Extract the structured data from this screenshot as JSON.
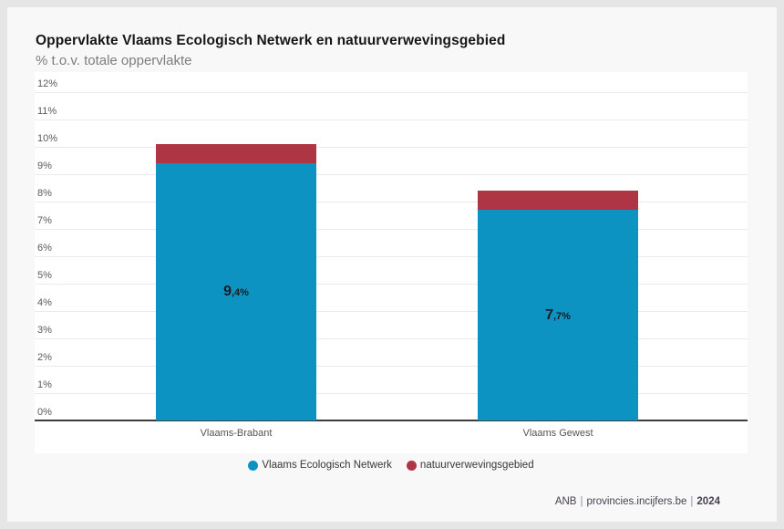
{
  "chart_data": {
    "type": "bar",
    "stacked": true,
    "title": "Oppervlakte Vlaams Ecologisch Netwerk en natuurverwevingsgebied",
    "subtitle": "% t.o.v. totale oppervlakte",
    "categories": [
      "Vlaams-Brabant",
      "Vlaams Gewest"
    ],
    "series": [
      {
        "name": "Vlaams Ecologisch Netwerk",
        "color": "#0d93c1",
        "values": [
          9.4,
          7.7
        ],
        "labels": [
          "9,4%",
          "7,7%"
        ]
      },
      {
        "name": "natuurverwevingsgebied",
        "color": "#ae3544",
        "values": [
          0.7,
          0.7
        ],
        "labels": []
      }
    ],
    "ylim": [
      0,
      12
    ],
    "ytick_step": 1,
    "ytick_suffix": "%",
    "grid": true,
    "legend_position": "bottom"
  },
  "footer": {
    "source": "ANB",
    "site": "provincies.incijfers.be",
    "year": "2024",
    "separator": "|"
  }
}
